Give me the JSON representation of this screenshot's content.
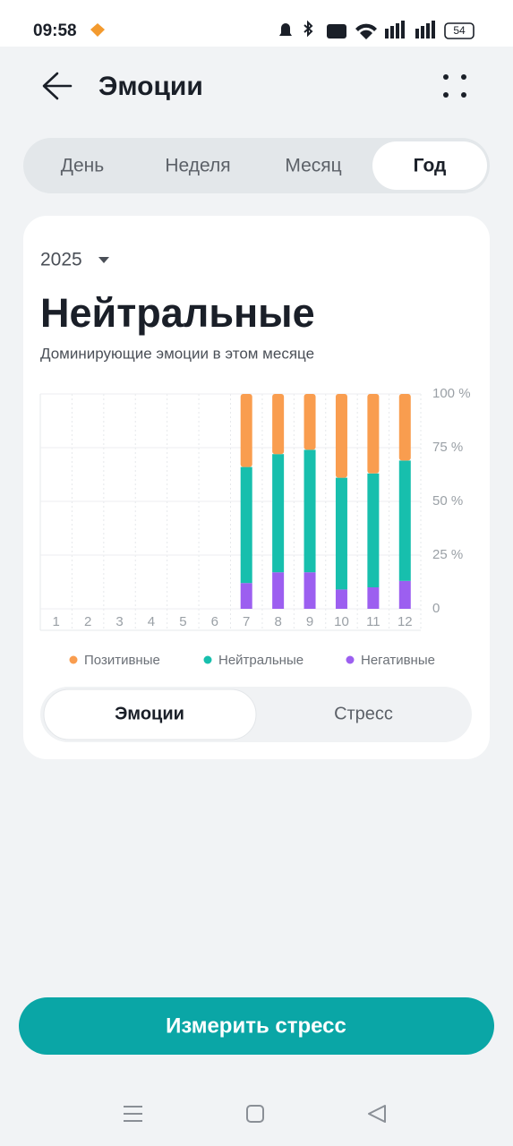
{
  "status_bar": {
    "time": "09:58",
    "battery": "54"
  },
  "header": {
    "title": "Эмоции"
  },
  "tabs": [
    "День",
    "Неделя",
    "Месяц",
    "Год"
  ],
  "card": {
    "year": "2025",
    "headline": "Нейтральные",
    "subtitle": "Доминирующие эмоции в этом месяце"
  },
  "chart_data": {
    "type": "stacked_bar",
    "categories": [
      "1",
      "2",
      "3",
      "4",
      "5",
      "6",
      "7",
      "8",
      "9",
      "10",
      "11",
      "12"
    ],
    "series": [
      {
        "name": "Позитивные",
        "color": "#f99d4f",
        "values": [
          null,
          null,
          null,
          null,
          null,
          null,
          34,
          28,
          26,
          39,
          37,
          31
        ]
      },
      {
        "name": "Нейтральные",
        "color": "#17bfad",
        "values": [
          null,
          null,
          null,
          null,
          null,
          null,
          54,
          55,
          57,
          52,
          53,
          56
        ]
      },
      {
        "name": "Негативные",
        "color": "#9c5ff0",
        "values": [
          null,
          null,
          null,
          null,
          null,
          null,
          12,
          17,
          17,
          9,
          10,
          13
        ]
      }
    ],
    "ylim": [
      0,
      100
    ],
    "yticks": [
      0,
      {
        "value": 25,
        "label": "25 %"
      },
      {
        "value": 50,
        "label": "50 %"
      },
      {
        "value": 75,
        "label": "75 %"
      },
      {
        "value": 100,
        "label": "100 %"
      }
    ],
    "grid": true
  },
  "toggle": [
    "Эмоции",
    "Стресс"
  ],
  "button": "Измерить стресс"
}
